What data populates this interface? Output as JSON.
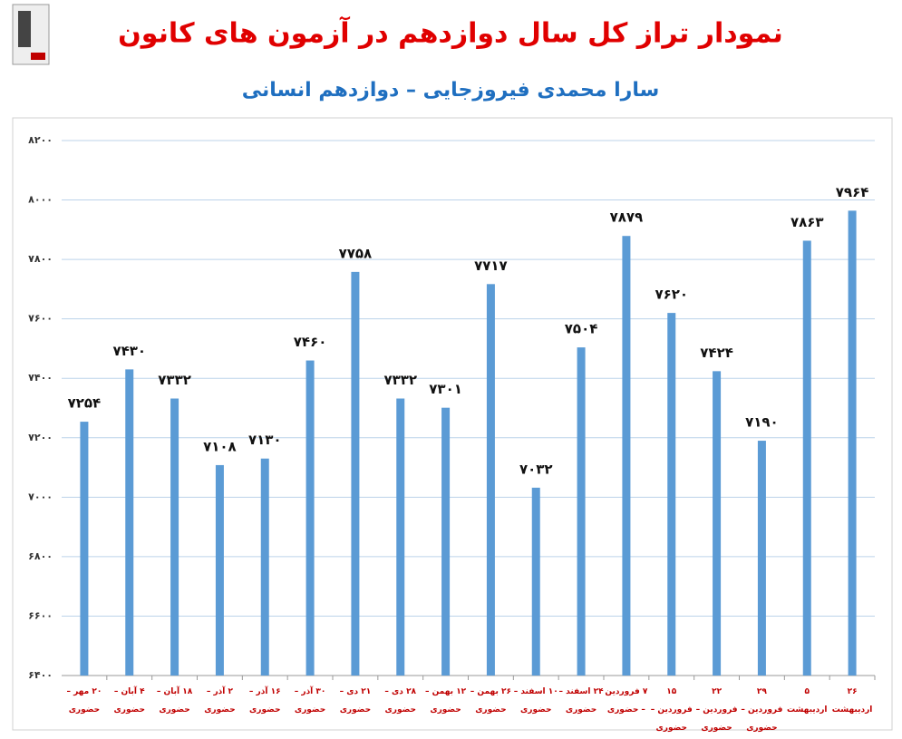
{
  "chart_data": {
    "type": "bar",
    "title": "نمودار تراز کل سال دوازدهم در آزمون های کانون",
    "subtitle": "سارا محمدی فیروزجایی – دوازدهم انسانی",
    "categories": [
      "۲۰ مهر – حضوری",
      "۴ آبان – حضوری",
      "۱۸ آبان – حضوری",
      "۲ آذر – حضوری",
      "۱۶ آذر – حضوری",
      "۳۰ آذر – حضوری",
      "۲۱ دی – حضوری",
      "۲۸ دی – حضوری",
      "۱۲ بهمن – حضوری",
      "۲۶ بهمن – حضوری",
      "۱۰ اسفند – حضوری",
      "۲۴ اسفند – حضوری",
      "۷ فروردین – حضوری",
      "۱۵ فروردین – حضوری",
      "۲۲ فروردین – حضوری",
      "۲۹ فروردین – حضوری",
      "۵ اردیبهشت",
      "۲۶ اردیبهشت"
    ],
    "values": [
      7254,
      7430,
      7332,
      7108,
      7130,
      7460,
      7758,
      7332,
      7301,
      7717,
      7032,
      7504,
      7879,
      7620,
      7424,
      7190,
      7863,
      7964
    ],
    "value_labels": [
      "۷۲۵۴",
      "۷۴۳۰",
      "۷۳۳۲",
      "۷۱۰۸",
      "۷۱۳۰",
      "۷۴۶۰",
      "۷۷۵۸",
      "۷۳۳۲",
      "۷۳۰۱",
      "۷۷۱۷",
      "۷۰۳۲",
      "۷۵۰۴",
      "۷۸۷۹",
      "۷۶۲۰",
      "۷۴۲۴",
      "۷۱۹۰",
      "۷۸۶۳",
      "۷۹۶۴"
    ],
    "color": "#5b9bd5",
    "ylim": [
      6400,
      8200
    ],
    "yticks": [
      {
        "value": 6400,
        "label": "۶۴۰۰"
      },
      {
        "value": 6600,
        "label": "۶۶۰۰"
      },
      {
        "value": 6800,
        "label": "۶۸۰۰"
      },
      {
        "value": 7000,
        "label": "۷۰۰۰"
      },
      {
        "value": 7200,
        "label": "۷۲۰۰"
      },
      {
        "value": 7400,
        "label": "۷۴۰۰"
      },
      {
        "value": 7600,
        "label": "۷۶۰۰"
      },
      {
        "value": 7800,
        "label": "۷۸۰۰"
      },
      {
        "value": 8000,
        "label": "۸۰۰۰"
      },
      {
        "value": 8200,
        "label": "۸۲۰۰"
      }
    ],
    "grid": true
  }
}
